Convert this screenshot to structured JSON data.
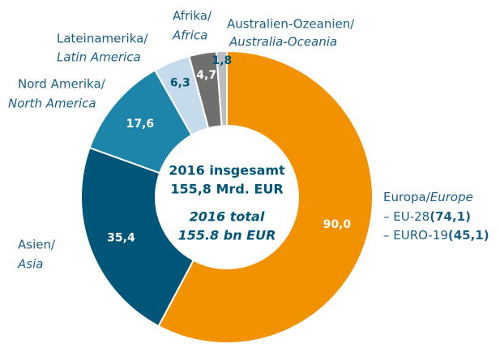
{
  "chart_data": {
    "type": "donut",
    "categories": [
      "Europa/",
      "Asien/",
      "Nord Amerika/",
      "Lateinamerika/",
      "Afrika/",
      "Australien-Ozeanien/"
    ],
    "categories_en": [
      "Europe",
      "Asia",
      "North America",
      "Latin America",
      "Africa",
      "Australia-Oceania"
    ],
    "values": [
      90.0,
      35.4,
      17.6,
      6.3,
      4.7,
      1.8
    ],
    "value_labels": [
      "90,0",
      "35,4",
      "17,6",
      "6,3",
      "4,7",
      "1,8"
    ],
    "colors": [
      "#f39200",
      "#005578",
      "#1d84aa",
      "#c5dbec",
      "#6f6f6e",
      "#b9bec2"
    ],
    "value_label_colors": [
      "#ffffff",
      "#ffffff",
      "#ffffff",
      "#005578",
      "#ffffff",
      "#005578"
    ],
    "sub_items": [
      {
        "text": "– EU-28",
        "value": 74.1,
        "value_label": "(74,1)"
      },
      {
        "text": "– EURO-19",
        "value": 45.1,
        "value_label": "(45,1)"
      }
    ],
    "center_text": [
      "2016 insgesamt",
      "155,8 Mrd. EUR",
      "2016 total",
      "155.8 bn EUR"
    ]
  }
}
